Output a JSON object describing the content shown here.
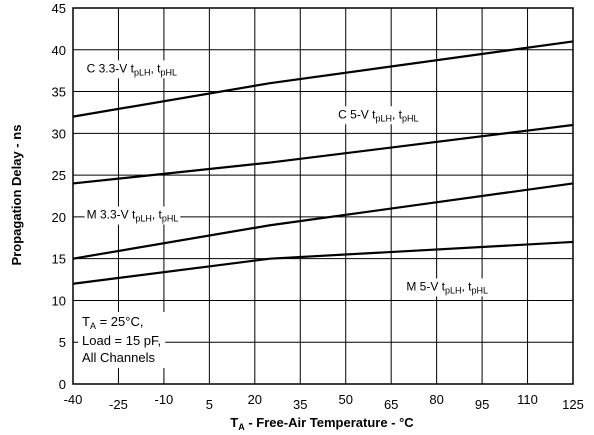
{
  "chart_data": {
    "type": "line",
    "title": "",
    "xlabel": {
      "main": "T",
      "sub": "A",
      "rest": " - Free-Air Temperature - °C"
    },
    "ylabel": "Propagation Delay - ns",
    "xlim": [
      -40,
      125
    ],
    "ylim": [
      0,
      45
    ],
    "x_ticks": [
      -40,
      -25,
      -10,
      5,
      20,
      35,
      50,
      65,
      80,
      95,
      110,
      125
    ],
    "y_ticks": [
      0,
      5,
      10,
      15,
      20,
      25,
      30,
      35,
      40,
      45
    ],
    "x_grid": [
      -25,
      -10,
      5,
      20,
      35,
      50,
      65,
      80,
      95,
      110
    ],
    "y_grid": [
      5,
      10,
      15,
      20,
      25,
      30,
      35,
      40
    ],
    "grid": true,
    "series": [
      {
        "x": [
          -40,
          25,
          125
        ],
        "y": [
          32,
          36,
          41
        ],
        "color": "#000000"
      },
      {
        "x": [
          -40,
          25,
          125
        ],
        "y": [
          24,
          26.5,
          31
        ],
        "color": "#000000"
      },
      {
        "x": [
          -40,
          25,
          125
        ],
        "y": [
          15,
          19,
          24
        ],
        "color": "#000000"
      },
      {
        "x": [
          -40,
          25,
          125
        ],
        "y": [
          12,
          15,
          17
        ],
        "color": "#000000"
      }
    ],
    "annotations": [
      {
        "id": "c33",
        "text": "C 3.3-V t",
        "s1": "pLH",
        "mid": ", t",
        "s2": "pHL",
        "x": -35.5,
        "y": 37.3
      },
      {
        "id": "c5",
        "text": "C 5-V t",
        "s1": "pLH",
        "mid": ", t",
        "s2": "pHL",
        "x": 47.5,
        "y": 31.8
      },
      {
        "id": "m33",
        "text": "M 3.3-V t",
        "s1": "pLH",
        "mid": ", t",
        "s2": "pHL",
        "x": -35.5,
        "y": 19.8
      },
      {
        "id": "m5",
        "text": "M 5-V t",
        "s1": "pLH",
        "mid": ", t",
        "s2": "pHL",
        "x": 70,
        "y": 11.2
      }
    ],
    "conditions": {
      "line1": {
        "main": "T",
        "sub": "A",
        "rest": " = 25°C,"
      },
      "line2": "Load = 15 pF,",
      "line3": "All Channels"
    }
  }
}
